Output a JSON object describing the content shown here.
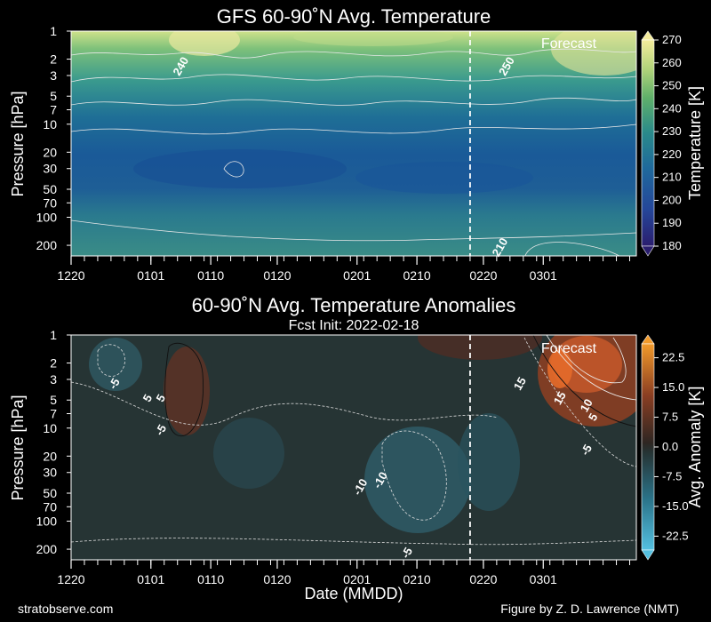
{
  "footer": {
    "left": "stratobserve.com",
    "right": "Figure by Z. D. Lawrence (NMT)"
  },
  "shared": {
    "xlabel": "Date (MMDD)",
    "x_tick_labels": [
      "1220",
      "0101",
      "0110",
      "0120",
      "0201",
      "0210",
      "0220",
      "0301"
    ],
    "x_tick_days": [
      0,
      12,
      21,
      31,
      43,
      52,
      62,
      71
    ],
    "x_range_days": [
      0,
      85
    ],
    "forecast_start_day": 60,
    "forecast_label": "Forecast",
    "ylabel": "Pressure [hPa]",
    "y_tick_labels": [
      "1",
      "2",
      "3",
      "5",
      "7",
      "10",
      "20",
      "30",
      "50",
      "70",
      "100",
      "200"
    ],
    "y_tick_values": [
      1,
      2,
      3,
      5,
      7,
      10,
      20,
      30,
      50,
      70,
      100,
      200
    ],
    "y_range": [
      1,
      260
    ],
    "y_scale": "log, inverted"
  },
  "chart_data": [
    {
      "type": "heatmap",
      "title": "GFS 60-90˚N Avg. Temperature",
      "colorbar_label": "Temperature [K]",
      "colorbar_ticks": [
        "180",
        "190",
        "200",
        "210",
        "220",
        "230",
        "240",
        "250",
        "260",
        "270"
      ],
      "colorbar_values": [
        180,
        190,
        200,
        210,
        220,
        230,
        240,
        250,
        260,
        270
      ],
      "colorbar_range": [
        180,
        270
      ],
      "colors": {
        "low": "#2a1e6e",
        "mid_low": "#1f5c9e",
        "mid": "#2a8a8a",
        "mid_high": "#5fb06a",
        "high": "#f4ec9c"
      },
      "contour_labels": [
        {
          "text": "240",
          "day": 17,
          "pressure": 2.5
        },
        {
          "text": "250",
          "day": 66,
          "pressure": 2.5
        },
        {
          "text": "210",
          "day": 65,
          "pressure": 220
        }
      ]
    },
    {
      "type": "heatmap",
      "title": "60-90˚N Avg. Temperature Anomalies",
      "subtitle": "Fcst Init: 2022-02-18",
      "colorbar_label": "Avg. Anomaly [K]",
      "colorbar_ticks": [
        "-22.5",
        "-15.0",
        "-7.5",
        "0.0",
        "7.5",
        "15.0",
        "22.5"
      ],
      "colorbar_values": [
        -22.5,
        -15.0,
        -7.5,
        0.0,
        7.5,
        15.0,
        22.5
      ],
      "colorbar_range": [
        -26,
        26
      ],
      "colors": {
        "neg": "#3aa8c8",
        "zero": "#263232",
        "pos": "#e86a28"
      },
      "contour_labels": [
        {
          "text": "-5",
          "day": 7,
          "pressure": 3.5
        },
        {
          "text": "5",
          "day": 14,
          "pressure": 5
        },
        {
          "text": "5",
          "day": 12,
          "pressure": 5
        },
        {
          "text": "-5",
          "day": 14,
          "pressure": 11
        },
        {
          "text": "-10",
          "day": 44,
          "pressure": 45
        },
        {
          "text": "-10",
          "day": 47,
          "pressure": 38
        },
        {
          "text": "-5",
          "day": 51,
          "pressure": 230
        },
        {
          "text": "15",
          "day": 68,
          "pressure": 3.5
        },
        {
          "text": "15",
          "day": 74,
          "pressure": 5
        },
        {
          "text": "10",
          "day": 78,
          "pressure": 6
        },
        {
          "text": "5",
          "day": 79,
          "pressure": 8
        },
        {
          "text": "-5",
          "day": 78,
          "pressure": 18
        }
      ]
    }
  ]
}
